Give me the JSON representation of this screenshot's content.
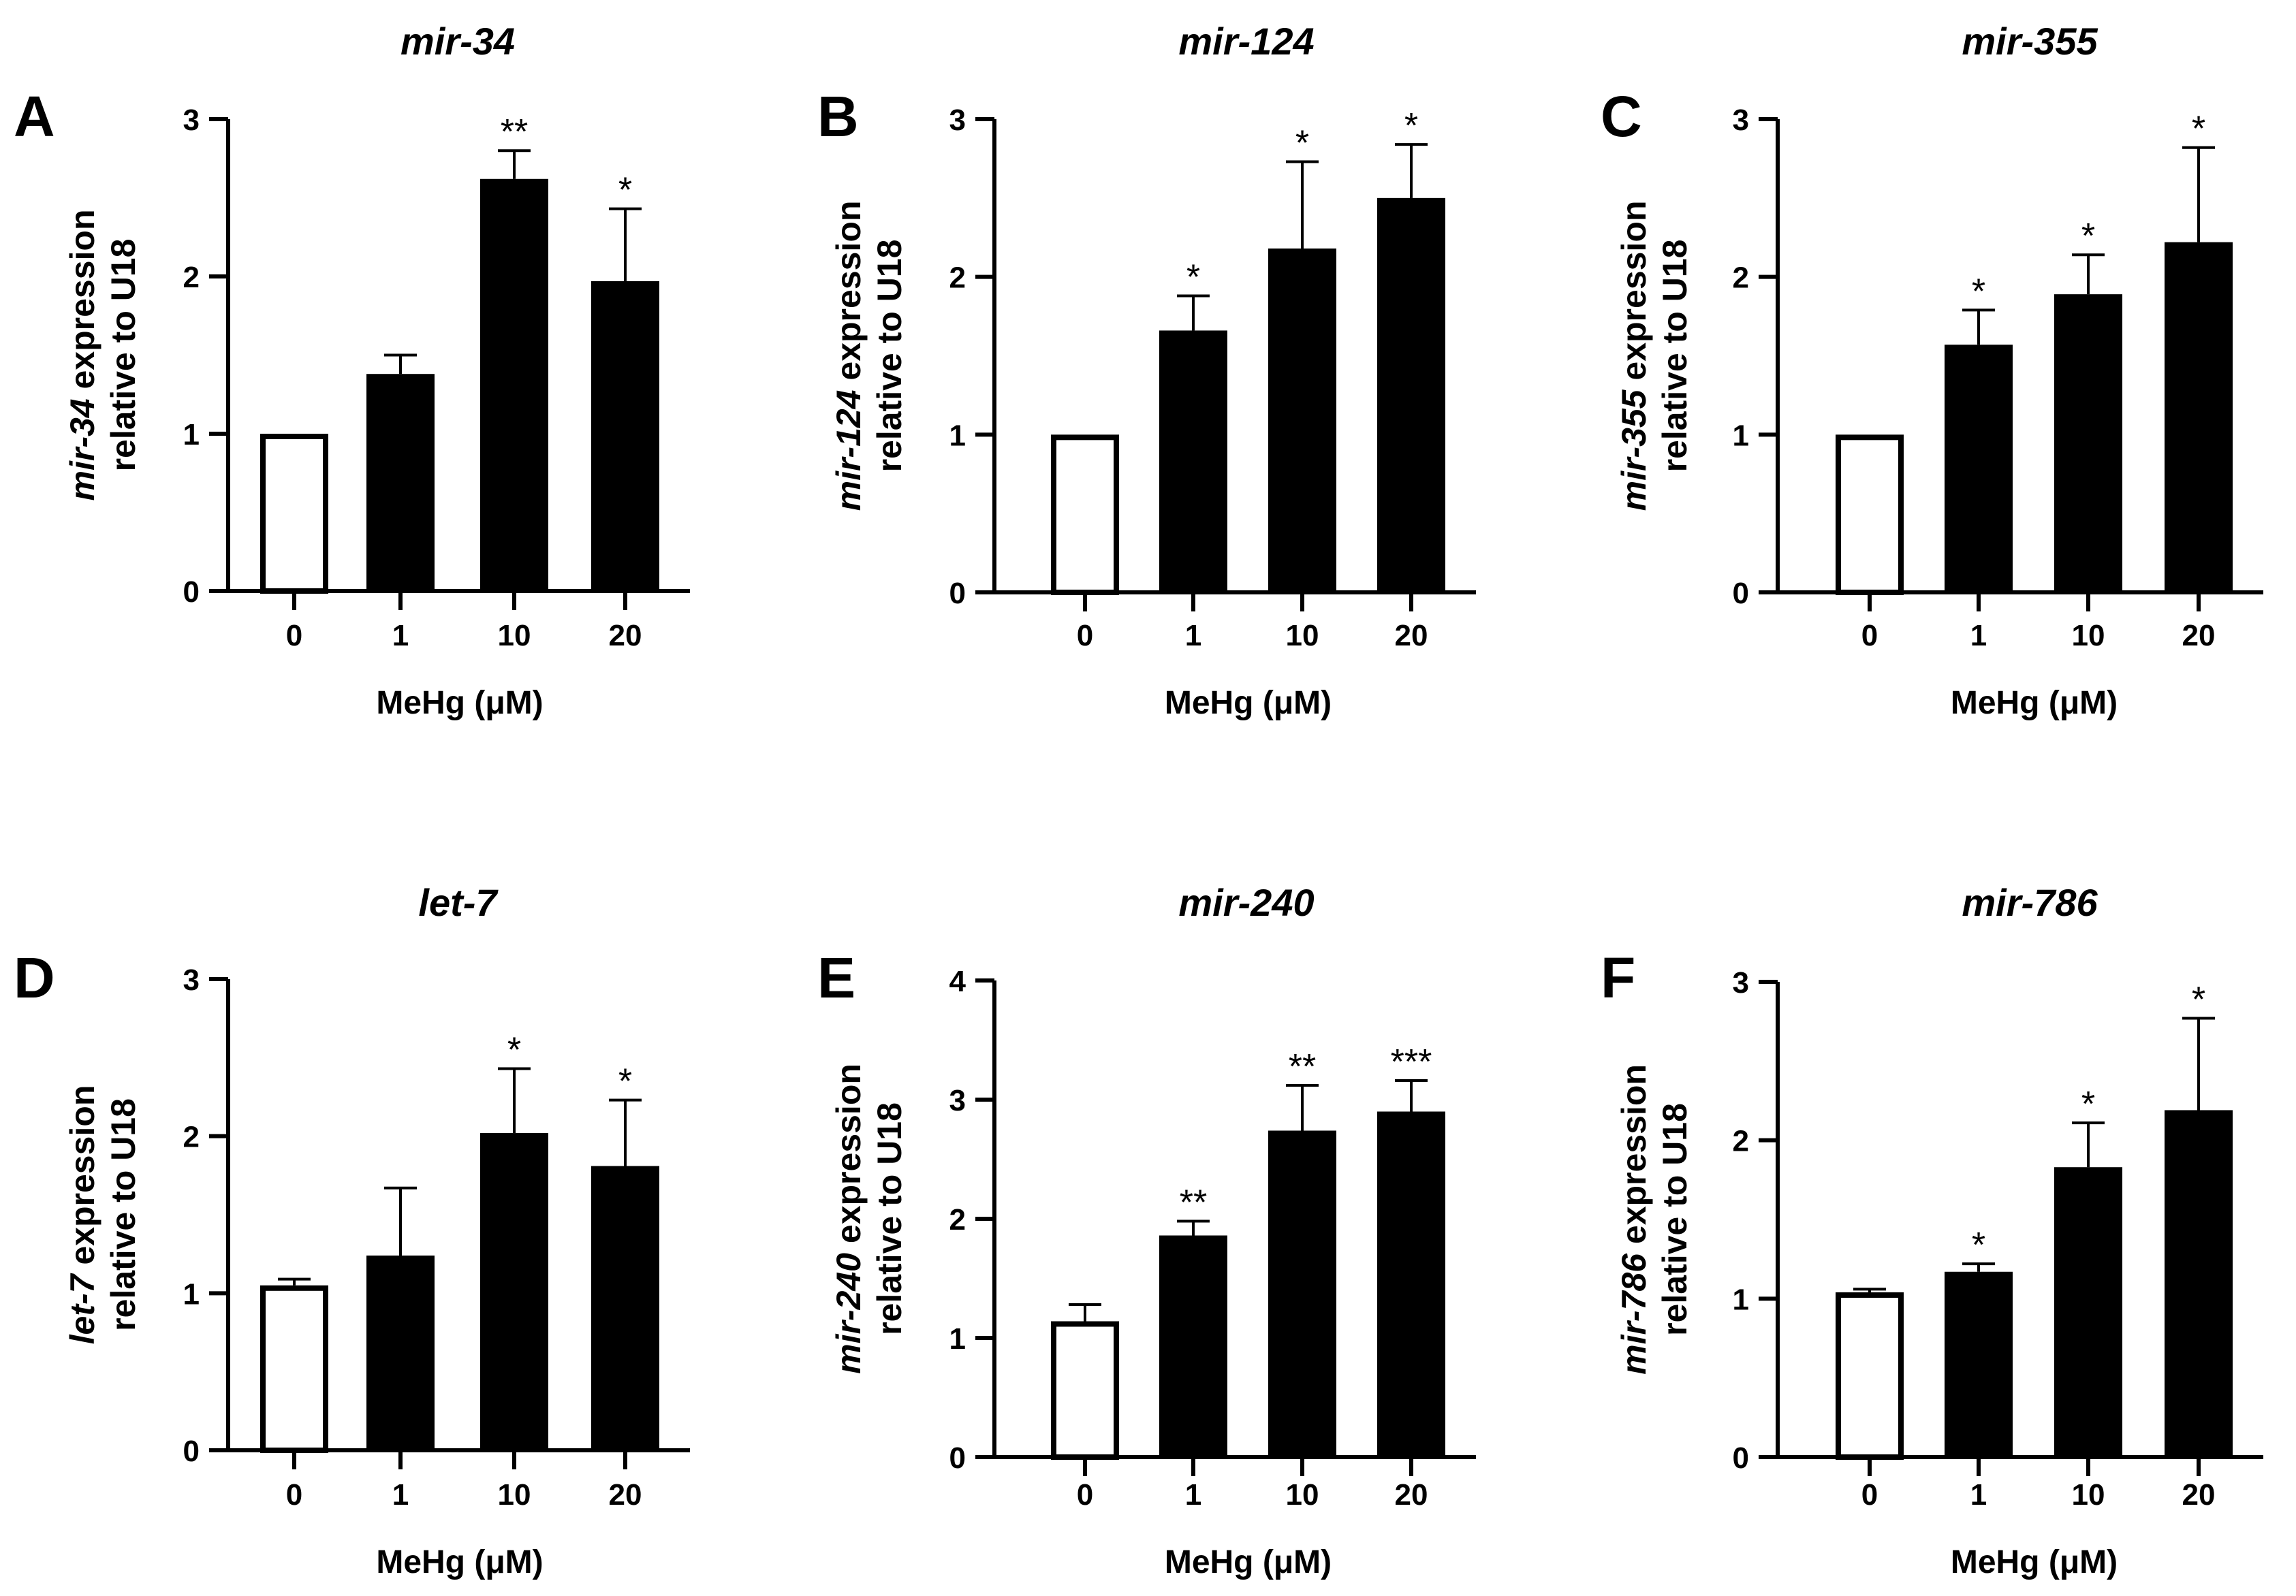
{
  "chart_data": [
    {
      "panel": "A",
      "type": "bar",
      "title": "mir-34",
      "ylabel_italic": "mir-34",
      "ylabel_rest": " expression",
      "ylabel_line2": "relative to U18",
      "xlabel": "MeHg (μM)",
      "categories": [
        "0",
        "1",
        "10",
        "20"
      ],
      "values": [
        1.0,
        1.38,
        2.62,
        1.97
      ],
      "errors": [
        0.0,
        0.12,
        0.18,
        0.46
      ],
      "significance": [
        "",
        "",
        "**",
        "*"
      ],
      "bar_fill": [
        "#ffffff",
        "#000000",
        "#000000",
        "#000000"
      ],
      "ylim": [
        0,
        3
      ],
      "yticks": [
        "0",
        "1",
        "2",
        "3"
      ]
    },
    {
      "panel": "B",
      "type": "bar",
      "title": "mir-124",
      "ylabel_italic": "mir-124",
      "ylabel_rest": " expression",
      "ylabel_line2": "relative to U18",
      "xlabel": "MeHg (μM)",
      "categories": [
        "0",
        "1",
        "10",
        "20"
      ],
      "values": [
        1.0,
        1.66,
        2.18,
        2.5
      ],
      "errors": [
        0.0,
        0.22,
        0.55,
        0.34
      ],
      "significance": [
        "",
        "*",
        "*",
        "*"
      ],
      "bar_fill": [
        "#ffffff",
        "#000000",
        "#000000",
        "#000000"
      ],
      "ylim": [
        0,
        3
      ],
      "yticks": [
        "0",
        "1",
        "2",
        "3"
      ]
    },
    {
      "panel": "C",
      "type": "bar",
      "title": "mir-355",
      "ylabel_italic": "mir-355",
      "ylabel_rest": " expression",
      "ylabel_line2": "relative to U18",
      "xlabel": "MeHg (μM)",
      "categories": [
        "0",
        "1",
        "10",
        "20"
      ],
      "values": [
        1.0,
        1.57,
        1.89,
        2.22
      ],
      "errors": [
        0.0,
        0.22,
        0.25,
        0.6
      ],
      "significance": [
        "",
        "*",
        "*",
        "*"
      ],
      "bar_fill": [
        "#ffffff",
        "#000000",
        "#000000",
        "#000000"
      ],
      "ylim": [
        0,
        3
      ],
      "yticks": [
        "0",
        "1",
        "2",
        "3"
      ]
    },
    {
      "panel": "D",
      "type": "bar",
      "title": "let-7",
      "ylabel_italic": "let-7",
      "ylabel_rest": " expression",
      "ylabel_line2": "relative to U18",
      "xlabel": "MeHg (μM)",
      "categories": [
        "0",
        "1",
        "10",
        "20"
      ],
      "values": [
        1.05,
        1.24,
        2.02,
        1.81
      ],
      "errors": [
        0.04,
        0.43,
        0.41,
        0.42
      ],
      "significance": [
        "",
        "",
        "*",
        "*"
      ],
      "bar_fill": [
        "#ffffff",
        "#000000",
        "#000000",
        "#000000"
      ],
      "ylim": [
        0,
        3
      ],
      "yticks": [
        "0",
        "1",
        "2",
        "3"
      ]
    },
    {
      "panel": "E",
      "type": "bar",
      "title": "mir-240",
      "ylabel_italic": "mir-240",
      "ylabel_rest": " expression",
      "ylabel_line2": "relative to U18",
      "xlabel": "MeHg (μM)",
      "categories": [
        "0",
        "1",
        "10",
        "20"
      ],
      "values": [
        1.14,
        1.86,
        2.74,
        2.9
      ],
      "errors": [
        0.14,
        0.12,
        0.38,
        0.26
      ],
      "significance": [
        "",
        "**",
        "**",
        "***"
      ],
      "bar_fill": [
        "#ffffff",
        "#000000",
        "#000000",
        "#000000"
      ],
      "ylim": [
        0,
        4
      ],
      "yticks": [
        "0",
        "1",
        "2",
        "3",
        "4"
      ]
    },
    {
      "panel": "F",
      "type": "bar",
      "title": "mir-786",
      "ylabel_italic": "mir-786",
      "ylabel_rest": " expression",
      "ylabel_line2": "relative to U18",
      "xlabel": "MeHg (μM)",
      "categories": [
        "0",
        "1",
        "10",
        "20"
      ],
      "values": [
        1.04,
        1.17,
        1.83,
        2.19
      ],
      "errors": [
        0.02,
        0.05,
        0.28,
        0.58
      ],
      "significance": [
        "",
        "*",
        "*",
        "*"
      ],
      "bar_fill": [
        "#ffffff",
        "#000000",
        "#000000",
        "#000000"
      ],
      "ylim": [
        0,
        3
      ],
      "yticks": [
        "0",
        "1",
        "2",
        "3"
      ]
    }
  ]
}
